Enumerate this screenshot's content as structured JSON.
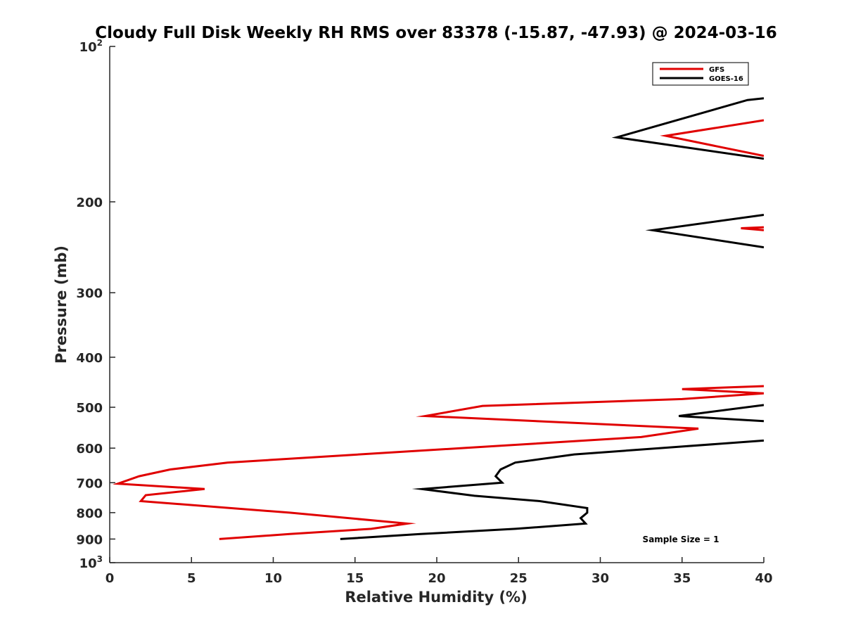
{
  "chart_data": {
    "type": "line",
    "title": "Cloudy Full Disk Weekly RH RMS over 83378 (-15.87, -47.93) @ 2024-03-16",
    "xlabel": "Relative Humidity (%)",
    "ylabel": "Pressure (mb)",
    "xlim": [
      0,
      40
    ],
    "ylim": [
      100,
      1000
    ],
    "yscale": "log",
    "yreversed": true,
    "grid": false,
    "legend_position": "top-right",
    "xticks": [
      0,
      5,
      10,
      15,
      20,
      25,
      30,
      35,
      40
    ],
    "xtick_labels": [
      "0",
      "5",
      "10",
      "15",
      "20",
      "25",
      "30",
      "35",
      "40"
    ],
    "yticks": [
      100,
      200,
      300,
      400,
      500,
      600,
      700,
      800,
      900,
      1000
    ],
    "ytick_labels": [
      {
        "base": "10",
        "sup": "2"
      },
      {
        "base": "200",
        "sup": ""
      },
      {
        "base": "300",
        "sup": ""
      },
      {
        "base": "400",
        "sup": ""
      },
      {
        "base": "500",
        "sup": ""
      },
      {
        "base": "600",
        "sup": ""
      },
      {
        "base": "700",
        "sup": ""
      },
      {
        "base": "800",
        "sup": ""
      },
      {
        "base": "900",
        "sup": ""
      },
      {
        "base": "10",
        "sup": "3"
      }
    ],
    "annotation": "Sample Size = 1",
    "series": [
      {
        "name": "GFS",
        "color": "#e00000",
        "segments": [
          [
            [
              40,
              139
            ],
            [
              34,
              149
            ],
            [
              40,
              163
            ]
          ],
          [
            [
              40,
              224
            ],
            [
              38.6,
              225
            ],
            [
              40,
              227
            ]
          ],
          [
            [
              40,
              455
            ],
            [
              35,
              461
            ],
            [
              40,
              470
            ],
            [
              35,
              482
            ],
            [
              22.8,
              497
            ],
            [
              19.3,
              520
            ],
            [
              36,
              550
            ],
            [
              32.5,
              571
            ],
            [
              7.2,
              640
            ],
            [
              3.7,
              660
            ],
            [
              1.8,
              680
            ],
            [
              0.5,
              703
            ],
            [
              5.8,
              720
            ],
            [
              2.2,
              740
            ],
            [
              1.9,
              760
            ],
            [
              11,
              800
            ],
            [
              18.2,
              840
            ],
            [
              16,
              860
            ],
            [
              11,
              880
            ],
            [
              6.7,
              900
            ]
          ]
        ]
      },
      {
        "name": "GOES-16",
        "color": "#000000",
        "segments": [
          [
            [
              40,
              126
            ],
            [
              39,
              127
            ],
            [
              31,
              150
            ],
            [
              40,
              165
            ]
          ],
          [
            [
              40,
              212
            ],
            [
              33.2,
              227
            ],
            [
              40,
              245
            ]
          ],
          [
            [
              40,
              495
            ],
            [
              34.8,
              520
            ],
            [
              40,
              532
            ]
          ],
          [
            [
              40,
              580
            ],
            [
              28.4,
              617
            ],
            [
              24.8,
              640
            ],
            [
              23.9,
              660
            ],
            [
              23.6,
              680
            ],
            [
              24,
              700
            ],
            [
              19.1,
              720
            ],
            [
              22.3,
              742
            ],
            [
              26.3,
              760
            ],
            [
              29.2,
              784
            ],
            [
              29.2,
              800
            ],
            [
              28.8,
              820
            ],
            [
              29.1,
              840
            ],
            [
              24.8,
              860
            ],
            [
              19,
              880
            ],
            [
              14.1,
              900
            ]
          ]
        ]
      }
    ]
  }
}
